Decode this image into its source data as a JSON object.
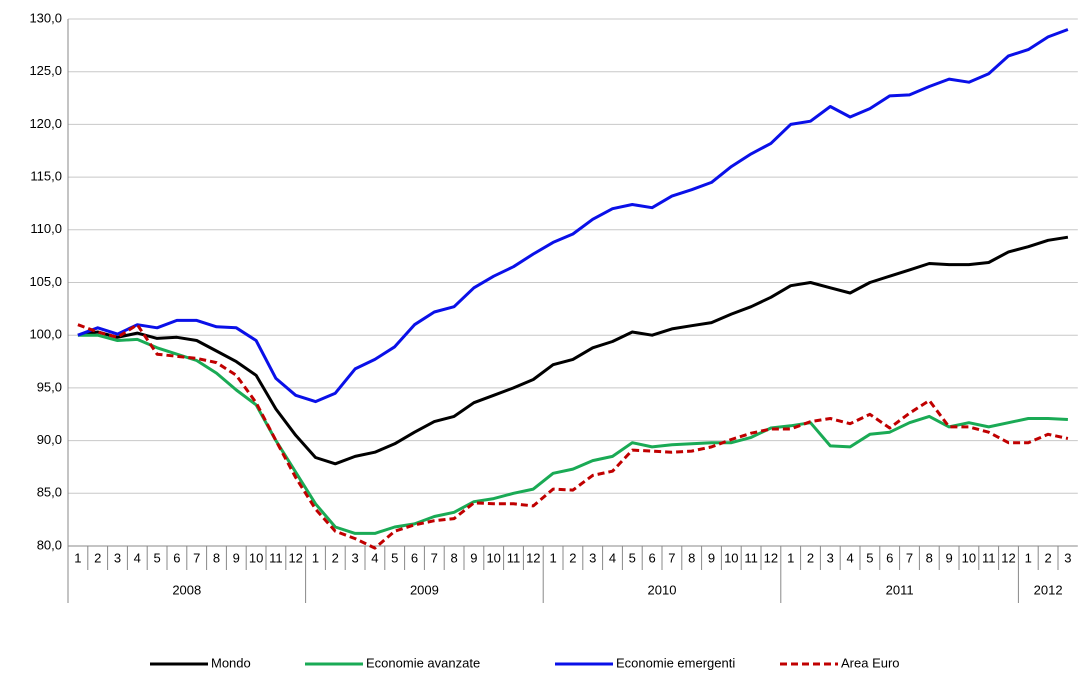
{
  "chart_data": {
    "type": "line",
    "categories": [
      "1",
      "2",
      "3",
      "4",
      "5",
      "6",
      "7",
      "8",
      "9",
      "10",
      "11",
      "12",
      "1",
      "2",
      "3",
      "4",
      "5",
      "6",
      "7",
      "8",
      "9",
      "10",
      "11",
      "12",
      "1",
      "2",
      "3",
      "4",
      "5",
      "6",
      "7",
      "8",
      "9",
      "10",
      "11",
      "12",
      "1",
      "2",
      "3",
      "4",
      "5",
      "6",
      "7",
      "8",
      "9",
      "10",
      "11",
      "12",
      "1",
      "2",
      "3"
    ],
    "category_groups": [
      "2008",
      "2009",
      "2010",
      "2011",
      "2012"
    ],
    "ylim": [
      80,
      130
    ],
    "yticks": [
      {
        "value": 80,
        "label": "80,0"
      },
      {
        "value": 85,
        "label": "85,0"
      },
      {
        "value": 90,
        "label": "90,0"
      },
      {
        "value": 95,
        "label": "95,0"
      },
      {
        "value": 100,
        "label": "100,0"
      },
      {
        "value": 105,
        "label": "105,0"
      },
      {
        "value": 110,
        "label": "110,0"
      },
      {
        "value": 115,
        "label": "115,0"
      },
      {
        "value": 120,
        "label": "120,0"
      },
      {
        "value": 125,
        "label": "125,0"
      },
      {
        "value": 130,
        "label": "130,0"
      }
    ],
    "grid": true,
    "legend": "bottom",
    "series": [
      {
        "name": "Mondo",
        "color": "#000000",
        "dashed": false,
        "values": [
          100,
          100.3,
          99.8,
          100.2,
          99.7,
          99.8,
          99.5,
          98.5,
          97.5,
          96.2,
          93,
          90.5,
          88.4,
          87.8,
          88.5,
          88.9,
          89.7,
          90.8,
          91.8,
          92.3,
          93.6,
          94.3,
          95,
          95.8,
          97.2,
          97.7,
          98.8,
          99.4,
          100.3,
          100,
          100.6,
          100.9,
          101.2,
          102,
          102.7,
          103.6,
          104.7,
          105,
          104.5,
          104,
          105,
          105.6,
          106.2,
          106.8,
          106.7,
          106.7,
          106.9,
          107.9,
          108.4,
          109,
          109.3
        ]
      },
      {
        "name": "Economie avanzate",
        "color": "#1aaa55",
        "dashed": false,
        "values": [
          100,
          100,
          99.5,
          99.6,
          98.8,
          98.2,
          97.6,
          96.4,
          94.8,
          93.4,
          90,
          87,
          84,
          81.8,
          81.2,
          81.2,
          81.8,
          82.1,
          82.8,
          83.2,
          84.2,
          84.5,
          85,
          85.4,
          86.9,
          87.3,
          88.1,
          88.5,
          89.8,
          89.4,
          89.6,
          89.7,
          89.8,
          89.8,
          90.3,
          91.2,
          91.4,
          91.7,
          89.5,
          89.4,
          90.6,
          90.8,
          91.7,
          92.3,
          91.3,
          91.7,
          91.3,
          91.7,
          92.1,
          92.1,
          92
        ]
      },
      {
        "name": "Economie emergenti",
        "color": "#0a10e8",
        "dashed": false,
        "values": [
          100,
          100.7,
          100.1,
          101,
          100.7,
          101.4,
          101.4,
          100.8,
          100.7,
          99.5,
          95.9,
          94.3,
          93.7,
          94.5,
          96.8,
          97.7,
          98.9,
          101,
          102.2,
          102.7,
          104.5,
          105.6,
          106.5,
          107.7,
          108.8,
          109.6,
          111,
          112,
          112.4,
          112.1,
          113.2,
          113.8,
          114.5,
          116,
          117.2,
          118.2,
          120,
          120.3,
          121.7,
          120.7,
          121.5,
          122.7,
          122.8,
          123.6,
          124.3,
          124,
          124.8,
          126.5,
          127.1,
          128.3,
          129
        ]
      },
      {
        "name": "Area Euro",
        "color": "#c00000",
        "dashed": true,
        "values": [
          101,
          100.3,
          99.8,
          101,
          98.2,
          98,
          97.8,
          97.4,
          96.2,
          93.6,
          90,
          86.5,
          83.5,
          81.4,
          80.7,
          79.8,
          81.4,
          82,
          82.4,
          82.6,
          84.1,
          84,
          84,
          83.8,
          85.4,
          85.3,
          86.7,
          87.1,
          89.1,
          89,
          88.9,
          89,
          89.4,
          90.1,
          90.7,
          91.1,
          91.1,
          91.8,
          92.1,
          91.6,
          92.5,
          91.2,
          92.6,
          93.8,
          91.3,
          91.3,
          90.8,
          89.8,
          89.8,
          90.6,
          90.2
        ]
      }
    ]
  }
}
